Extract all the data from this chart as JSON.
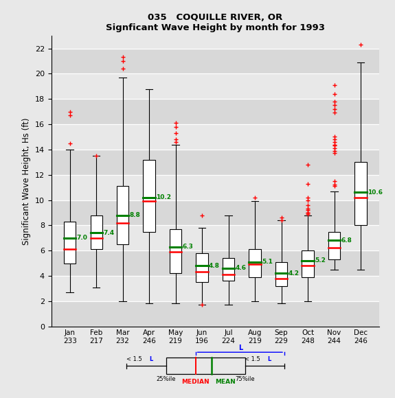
{
  "title1": "035   COQUILLE RIVER, OR",
  "title2": "Signficant Wave Height by month for 1993",
  "ylabel": "Significant Wave Height, Hs (ft)",
  "months": [
    "Jan",
    "Feb",
    "Mar",
    "Apr",
    "May",
    "Jun",
    "Jul",
    "Aug",
    "Sep",
    "Oct",
    "Nov",
    "Dec"
  ],
  "counts": [
    233,
    217,
    232,
    246,
    219,
    196,
    224,
    219,
    229,
    248,
    244,
    246
  ],
  "means": [
    7.0,
    7.4,
    8.8,
    10.2,
    6.3,
    4.8,
    4.6,
    5.1,
    4.2,
    5.2,
    6.8,
    10.6
  ],
  "medians": [
    6.1,
    7.0,
    8.2,
    9.9,
    5.9,
    4.3,
    4.1,
    4.9,
    3.8,
    4.8,
    6.2,
    10.2
  ],
  "q1": [
    5.0,
    6.1,
    6.5,
    7.5,
    4.2,
    3.5,
    3.6,
    3.9,
    3.2,
    3.9,
    5.3,
    8.0
  ],
  "q3": [
    8.3,
    8.8,
    11.1,
    13.2,
    7.7,
    5.8,
    5.4,
    6.1,
    5.1,
    6.0,
    7.5,
    13.0
  ],
  "whisker_low": [
    2.7,
    3.1,
    2.0,
    1.8,
    1.8,
    1.7,
    1.7,
    2.0,
    1.8,
    2.0,
    4.5,
    4.5
  ],
  "whisker_high": [
    14.0,
    13.5,
    19.7,
    18.8,
    14.4,
    7.8,
    8.8,
    9.9,
    8.4,
    8.8,
    10.7,
    20.9
  ],
  "outliers": {
    "0": [
      16.7,
      17.0,
      14.5
    ],
    "1": [
      13.5
    ],
    "2": [
      20.4,
      21.3,
      21.0
    ],
    "3": [],
    "4": [
      14.8,
      15.8,
      16.1,
      15.3,
      14.6
    ],
    "5": [
      8.8,
      1.7
    ],
    "6": [],
    "7": [
      10.2
    ],
    "8": [
      8.6,
      8.4
    ],
    "9": [
      12.8,
      11.3,
      10.2,
      10.0,
      9.6,
      9.3,
      9.2,
      9.0,
      9.0,
      8.9
    ],
    "10": [
      19.1,
      18.4,
      17.8,
      17.5,
      17.2,
      16.9,
      15.0,
      14.8,
      14.6,
      14.4,
      14.3,
      14.1,
      13.9,
      13.7,
      11.5,
      11.2,
      11.1
    ],
    "11": [
      22.3
    ]
  },
  "ylim": [
    0,
    23
  ],
  "yticks": [
    0,
    2,
    4,
    6,
    8,
    10,
    12,
    14,
    16,
    18,
    20,
    22
  ],
  "stripe_colors": [
    "#d8d8d8",
    "#e8e8e8"
  ],
  "bg_color": "#e8e8e8",
  "box_facecolor": "white",
  "box_edgecolor": "black",
  "median_color": "red",
  "mean_color": "green",
  "outlier_color": "red",
  "whisker_color": "black",
  "mean_label_color": "green",
  "box_width": 0.45
}
